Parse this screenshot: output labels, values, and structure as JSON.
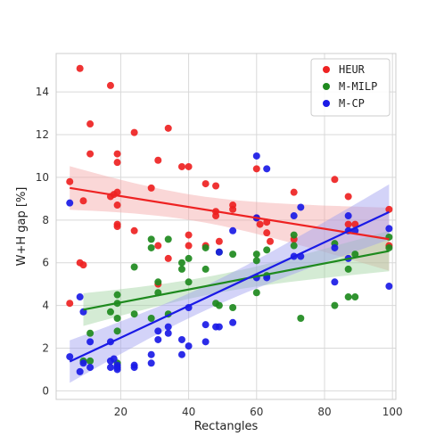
{
  "chart_data": {
    "type": "scatter",
    "title": "",
    "xlabel": "Rectangles",
    "ylabel": "W+H gap [%]",
    "xlim": [
      1,
      101
    ],
    "ylim": [
      -0.4,
      15.8
    ],
    "xticks": [
      20,
      40,
      60,
      80,
      100
    ],
    "yticks": [
      0,
      2,
      4,
      6,
      8,
      10,
      12,
      14
    ],
    "grid": true,
    "legend_position": "top-right",
    "series": [
      {
        "name": "HEUR",
        "color": "#ee2222",
        "regression": {
          "slope": -0.0255,
          "intercept": 9.63,
          "band_color": "#f4a6a6"
        },
        "points": [
          [
            5,
            9.8
          ],
          [
            5,
            4.1
          ],
          [
            8,
            6.0
          ],
          [
            8,
            15.1
          ],
          [
            9,
            5.9
          ],
          [
            9,
            8.9
          ],
          [
            11,
            12.5
          ],
          [
            11,
            11.1
          ],
          [
            17,
            14.3
          ],
          [
            17,
            9.1
          ],
          [
            18,
            9.2
          ],
          [
            19,
            11.1
          ],
          [
            19,
            10.7
          ],
          [
            19,
            9.3
          ],
          [
            19,
            8.7
          ],
          [
            19,
            7.8
          ],
          [
            19,
            7.7
          ],
          [
            24,
            12.1
          ],
          [
            24,
            7.5
          ],
          [
            29,
            9.5
          ],
          [
            31,
            10.8
          ],
          [
            31,
            6.8
          ],
          [
            31,
            5.0
          ],
          [
            34,
            12.3
          ],
          [
            34,
            6.2
          ],
          [
            38,
            10.5
          ],
          [
            40,
            10.5
          ],
          [
            40,
            7.3
          ],
          [
            40,
            6.8
          ],
          [
            45,
            9.7
          ],
          [
            45,
            6.8
          ],
          [
            48,
            9.6
          ],
          [
            48,
            8.4
          ],
          [
            48,
            8.2
          ],
          [
            49,
            7.0
          ],
          [
            53,
            8.7
          ],
          [
            53,
            8.5
          ],
          [
            60,
            10.4
          ],
          [
            60,
            8.1
          ],
          [
            61,
            7.8
          ],
          [
            63,
            7.9
          ],
          [
            63,
            7.4
          ],
          [
            64,
            7.0
          ],
          [
            71,
            9.3
          ],
          [
            71,
            7.1
          ],
          [
            83,
            9.9
          ],
          [
            87,
            9.1
          ],
          [
            87,
            7.8
          ],
          [
            89,
            7.8
          ],
          [
            99,
            8.5
          ],
          [
            99,
            6.8
          ]
        ]
      },
      {
        "name": "M-MILP",
        "color": "#1e8a1e",
        "regression": {
          "slope": 0.0305,
          "intercept": 3.53,
          "band_color": "#9fd29f"
        },
        "points": [
          [
            9,
            1.4
          ],
          [
            11,
            2.7
          ],
          [
            11,
            1.4
          ],
          [
            17,
            3.7
          ],
          [
            19,
            4.5
          ],
          [
            19,
            4.1
          ],
          [
            19,
            3.4
          ],
          [
            19,
            2.8
          ],
          [
            19,
            1.3
          ],
          [
            24,
            5.8
          ],
          [
            24,
            3.6
          ],
          [
            29,
            7.1
          ],
          [
            29,
            6.7
          ],
          [
            29,
            3.4
          ],
          [
            31,
            5.1
          ],
          [
            31,
            4.6
          ],
          [
            34,
            7.1
          ],
          [
            34,
            3.6
          ],
          [
            38,
            6.0
          ],
          [
            38,
            5.7
          ],
          [
            40,
            6.2
          ],
          [
            40,
            5.1
          ],
          [
            45,
            6.7
          ],
          [
            45,
            5.7
          ],
          [
            48,
            4.1
          ],
          [
            49,
            6.5
          ],
          [
            49,
            4.0
          ],
          [
            53,
            6.4
          ],
          [
            53,
            3.9
          ],
          [
            60,
            6.4
          ],
          [
            60,
            6.1
          ],
          [
            60,
            4.6
          ],
          [
            63,
            6.6
          ],
          [
            63,
            5.4
          ],
          [
            71,
            7.3
          ],
          [
            71,
            6.8
          ],
          [
            73,
            3.4
          ],
          [
            83,
            6.9
          ],
          [
            83,
            4.0
          ],
          [
            87,
            5.7
          ],
          [
            87,
            4.4
          ],
          [
            89,
            6.4
          ],
          [
            89,
            4.4
          ],
          [
            99,
            7.2
          ],
          [
            99,
            6.7
          ]
        ]
      },
      {
        "name": "M-CP",
        "color": "#1a1ae6",
        "regression": {
          "slope": 0.0745,
          "intercept": 1.0,
          "band_color": "#9d9df0"
        },
        "points": [
          [
            5,
            8.8
          ],
          [
            5,
            1.6
          ],
          [
            8,
            4.4
          ],
          [
            8,
            0.9
          ],
          [
            9,
            1.3
          ],
          [
            9,
            3.7
          ],
          [
            11,
            2.3
          ],
          [
            11,
            1.1
          ],
          [
            17,
            2.3
          ],
          [
            17,
            1.4
          ],
          [
            17,
            1.1
          ],
          [
            18,
            1.5
          ],
          [
            19,
            1.2
          ],
          [
            19,
            1.1
          ],
          [
            19,
            1.0
          ],
          [
            24,
            1.2
          ],
          [
            24,
            1.1
          ],
          [
            29,
            1.7
          ],
          [
            29,
            1.3
          ],
          [
            31,
            2.8
          ],
          [
            31,
            2.4
          ],
          [
            34,
            3.0
          ],
          [
            34,
            2.7
          ],
          [
            38,
            2.4
          ],
          [
            38,
            1.7
          ],
          [
            40,
            3.9
          ],
          [
            40,
            2.1
          ],
          [
            45,
            3.1
          ],
          [
            45,
            2.3
          ],
          [
            48,
            3.0
          ],
          [
            49,
            3.0
          ],
          [
            49,
            6.5
          ],
          [
            53,
            7.5
          ],
          [
            53,
            3.2
          ],
          [
            60,
            11.0
          ],
          [
            60,
            8.1
          ],
          [
            60,
            5.3
          ],
          [
            63,
            10.4
          ],
          [
            63,
            5.3
          ],
          [
            71,
            8.2
          ],
          [
            71,
            6.3
          ],
          [
            73,
            8.6
          ],
          [
            73,
            6.3
          ],
          [
            83,
            6.7
          ],
          [
            83,
            5.1
          ],
          [
            87,
            8.2
          ],
          [
            87,
            7.5
          ],
          [
            87,
            6.2
          ],
          [
            89,
            7.5
          ],
          [
            99,
            7.6
          ],
          [
            99,
            4.9
          ]
        ]
      }
    ]
  }
}
